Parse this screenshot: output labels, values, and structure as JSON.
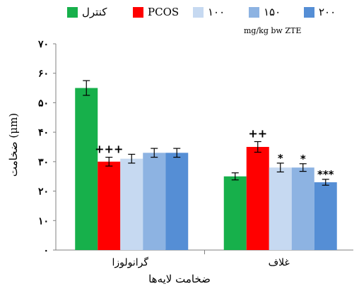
{
  "chart_data": {
    "type": "bar",
    "categories": [
      "گرانولوزا",
      "غلاف"
    ],
    "series": [
      {
        "name": "کنترل",
        "color": "#17b04b",
        "values": [
          55,
          25
        ],
        "errors": [
          2.5,
          1.2
        ],
        "marks": [
          "",
          ""
        ]
      },
      {
        "name": "PCOS",
        "color": "#ff0000",
        "values": [
          30,
          35
        ],
        "errors": [
          1.5,
          1.8
        ],
        "marks": [
          "+++",
          "++"
        ]
      },
      {
        "name": "۱۰۰",
        "color": "#c6d9f1",
        "values": [
          31,
          28
        ],
        "errors": [
          1.5,
          1.5
        ],
        "marks": [
          "",
          "*"
        ]
      },
      {
        "name": "۱۵۰",
        "color": "#8db3e2",
        "values": [
          33,
          28
        ],
        "errors": [
          1.5,
          1.3
        ],
        "marks": [
          "",
          "*"
        ]
      },
      {
        "name": "۲۰۰",
        "color": "#558ed5",
        "values": [
          33,
          23
        ],
        "errors": [
          1.5,
          1.0
        ],
        "marks": [
          "",
          "***"
        ]
      }
    ],
    "legend_subtitle": "mg/kg bw ZTE",
    "ylabel": "ضخامت (μm)",
    "xlabel": "ضخامت لایه‌ها",
    "ylim": [
      0,
      70
    ],
    "yticks": [
      0,
      10,
      20,
      30,
      40,
      50,
      60,
      70
    ],
    "ytick_labels": [
      "۰",
      "۱۰",
      "۲۰",
      "۳۰",
      "۴۰",
      "۵۰",
      "۶۰",
      "۷۰"
    ],
    "grid": false,
    "legend_position": "top"
  }
}
